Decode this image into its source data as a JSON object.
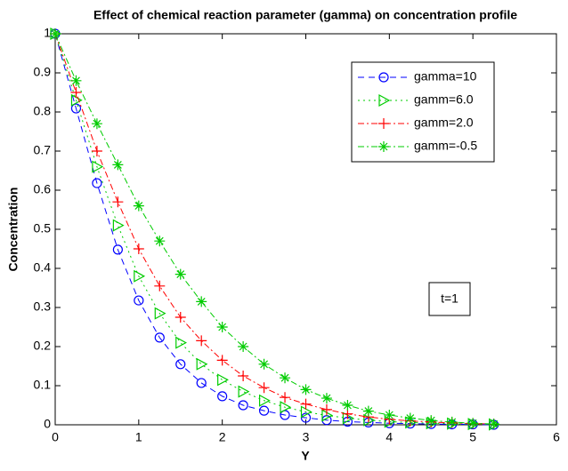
{
  "chart_data": {
    "type": "line",
    "title": "Effect of chemical reaction parameter (gamma) on concentration profile",
    "x_label": "Y",
    "y_label": "Concentration",
    "annotation": "t=1",
    "x": [
      0,
      0.25,
      0.5,
      0.75,
      1,
      1.25,
      1.5,
      1.75,
      2,
      2.25,
      2.5,
      2.75,
      3,
      3.25,
      3.5,
      3.75,
      4,
      4.25,
      4.5,
      4.75,
      5,
      5.25
    ],
    "series": [
      {
        "name": "gamma=10",
        "color": "#0000ff",
        "dash": "7,5",
        "marker": "circle",
        "values": [
          1,
          0.809,
          0.618,
          0.448,
          0.318,
          0.223,
          0.155,
          0.107,
          0.073,
          0.05,
          0.036,
          0.025,
          0.018,
          0.012,
          0.008,
          0.006,
          0.004,
          0.003,
          0.002,
          0.001,
          0.001,
          0
        ]
      },
      {
        "name": "gamm=6.0",
        "color": "#00cc00",
        "dash": "2,4",
        "marker": "triangle",
        "values": [
          1,
          0.83,
          0.66,
          0.51,
          0.38,
          0.285,
          0.21,
          0.155,
          0.115,
          0.085,
          0.062,
          0.045,
          0.033,
          0.024,
          0.017,
          0.012,
          0.008,
          0.006,
          0.004,
          0.003,
          0.002,
          0.001
        ]
      },
      {
        "name": "gamm=2.0",
        "color": "#ff0000",
        "dash": "7,3,2,3",
        "marker": "plus",
        "values": [
          1,
          0.85,
          0.7,
          0.57,
          0.45,
          0.355,
          0.275,
          0.215,
          0.165,
          0.125,
          0.095,
          0.07,
          0.053,
          0.039,
          0.028,
          0.02,
          0.014,
          0.01,
          0.007,
          0.005,
          0.003,
          0.002
        ]
      },
      {
        "name": "gamm=-0.5",
        "color": "#00cc00",
        "dash": "7,3,2,3",
        "marker": "star",
        "values": [
          1,
          0.88,
          0.77,
          0.665,
          0.56,
          0.47,
          0.385,
          0.315,
          0.25,
          0.2,
          0.155,
          0.12,
          0.09,
          0.068,
          0.05,
          0.035,
          0.025,
          0.017,
          0.011,
          0.007,
          0.004,
          0.002
        ]
      }
    ],
    "xlim": [
      0,
      6
    ],
    "xticks": [
      0,
      1,
      2,
      3,
      4,
      5,
      6
    ],
    "ylim": [
      0,
      1
    ],
    "yticks": [
      0,
      0.1,
      0.2,
      0.3,
      0.4,
      0.5,
      0.6,
      0.7,
      0.8,
      0.9,
      1
    ],
    "legend": "northeast"
  }
}
